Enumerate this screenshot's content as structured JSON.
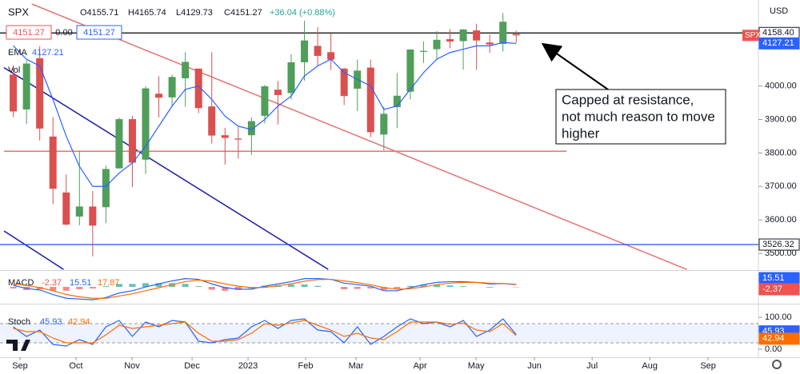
{
  "header": {
    "symbol": "SPX",
    "open": "O4155.71",
    "high": "H4165.74",
    "low": "L4129.73",
    "close": "C4151.27",
    "change": "+36.04 (+0.88%)",
    "bid": "4151.27",
    "spread": "0.00",
    "ask": "4151.27",
    "ema_label": "EMA",
    "ema_value": "4127.21",
    "vol": "Vol"
  },
  "currency": "USD",
  "annotation": [
    "Capped at resistance,",
    "not much reason to move",
    "higher"
  ],
  "chart_data": [
    {
      "type": "candlestick",
      "x": [
        0,
        1,
        2,
        3,
        4,
        5,
        6,
        7,
        8,
        9,
        10,
        11,
        12,
        13,
        14,
        15,
        16,
        17,
        18,
        19,
        20,
        21,
        22,
        23,
        24,
        25,
        26,
        27,
        28,
        29,
        30,
        31,
        32,
        33,
        34,
        35,
        36,
        37,
        38
      ],
      "open": [
        4034,
        3930,
        4083,
        3849,
        3682,
        3610,
        3640,
        3638,
        3754,
        3901,
        3780,
        3977,
        3966,
        4023,
        4052,
        3939,
        3853,
        3843,
        3853,
        3911,
        3989,
        3979,
        4071,
        4120,
        4101,
        4052,
        3992,
        4055,
        3855,
        3937,
        3983,
        4102,
        4110,
        4140,
        4134,
        4166,
        4130,
        4126,
        4155.71
      ],
      "high": [
        4062,
        4077,
        4119,
        3907,
        3736,
        3806,
        3686,
        3762,
        3905,
        3911,
        3999,
        4029,
        4034,
        4101,
        4052,
        4101,
        3875,
        3878,
        3906,
        4003,
        4015,
        4095,
        4195,
        4176,
        4156,
        4054,
        4079,
        4079,
        3938,
        4039,
        4110,
        4133,
        4164,
        4170,
        4170,
        4186,
        4154,
        4218,
        4165.74
      ],
      "low": [
        3907,
        3886,
        3837,
        3647,
        3584,
        3584,
        3491,
        3590,
        3753,
        3698,
        3737,
        3906,
        3938,
        3938,
        3919,
        3828,
        3765,
        3783,
        3794,
        3888,
        3885,
        3960,
        4016,
        4061,
        4048,
        3943,
        3925,
        3847,
        3808,
        3874,
        3960,
        4069,
        4079,
        4113,
        4049,
        4048,
        4099,
        4103,
        4129.73
      ],
      "close": [
        3924,
        4067,
        3873,
        3693,
        3586,
        3640,
        3583,
        3752,
        3901,
        3771,
        3993,
        3965,
        4027,
        4072,
        3934,
        3852,
        3845,
        3840,
        3895,
        3999,
        3973,
        4071,
        4136,
        4090,
        4079,
        3970,
        4046,
        3862,
        3917,
        3971,
        4109,
        4105,
        4138,
        4133,
        4169,
        4136,
        4124,
        4192,
        4151.27
      ],
      "up_color": "#4f9e5a",
      "down_color": "#d9504f",
      "ema": {
        "color": "#2962ff",
        "last_label": "4127.21",
        "values": [
          4120,
          4080,
          4060,
          3960,
          3850,
          3760,
          3700,
          3700,
          3740,
          3770,
          3820,
          3880,
          3940,
          3990,
          4000,
          3960,
          3910,
          3880,
          3870,
          3900,
          3940,
          3970,
          4030,
          4060,
          4080,
          4040,
          4020,
          4000,
          3930,
          3940,
          3990,
          4040,
          4080,
          4100,
          4110,
          4120,
          4120,
          4130,
          4127.21
        ]
      },
      "symbol_tag": "SPX",
      "xlim": [
        -0.7,
        56.3
      ],
      "ylim": [
        3450,
        4245
      ],
      "xticks": [
        {
          "value": 0.51,
          "label": "Sep"
        },
        {
          "value": 4.74,
          "label": "Oct"
        },
        {
          "value": 8.97,
          "label": "Nov"
        },
        {
          "value": 13.51,
          "label": "Dec"
        },
        {
          "value": 17.74,
          "label": "2023"
        },
        {
          "value": 22.09,
          "label": "Feb"
        },
        {
          "value": 25.9,
          "label": "Mar"
        },
        {
          "value": 30.74,
          "label": "Apr"
        },
        {
          "value": 34.97,
          "label": "May"
        },
        {
          "value": 39.38,
          "label": "Jun"
        },
        {
          "value": 43.74,
          "label": "Jul"
        },
        {
          "value": 48.09,
          "label": "Aug"
        },
        {
          "value": 52.5,
          "label": "Sep"
        }
      ],
      "yticks": [
        {
          "value": 4000,
          "label": "4000.00"
        },
        {
          "value": 3900,
          "label": "3900.00"
        },
        {
          "value": 3800,
          "label": "3800.00"
        },
        {
          "value": 3700,
          "label": "3700.00"
        },
        {
          "value": 3600,
          "label": "3600.00"
        },
        {
          "value": 3500,
          "label": "3500.00"
        }
      ],
      "hlines": [
        {
          "value": 4158.4,
          "label": "4158.40",
          "color": "#000000"
        },
        {
          "value": 3526.32,
          "label": "3526.32",
          "color": "#1e53e5"
        }
      ],
      "trendlines": [
        {
          "x": [
            -0.7,
            23.8
          ],
          "y": [
            4055,
            3452
          ],
          "color": "#1a1aa6"
        },
        {
          "x": [
            -0.7,
            3.8
          ],
          "y": [
            3567,
            3452
          ],
          "color": "#1a1aa6"
        },
        {
          "x": [
            1.4,
            50.9
          ],
          "y": [
            4245,
            3452
          ],
          "color": "#e57373"
        },
        {
          "x": [
            -0.7,
            41.8
          ],
          "y": [
            3805,
            3805
          ],
          "color": "#e57373"
        }
      ]
    },
    {
      "type": "macd",
      "title": "MACD",
      "legend_values": [
        "-2.37",
        "15.51",
        "17.87"
      ],
      "axis_labels": [
        "15.51",
        "-2.37"
      ],
      "ylim": [
        -100,
        90
      ],
      "series": [
        {
          "color": "#2962ff",
          "values": [
            10,
            -10,
            -20,
            -50,
            -75,
            -80,
            -85,
            -70,
            -40,
            -25,
            0,
            20,
            40,
            55,
            50,
            20,
            -5,
            -15,
            -15,
            5,
            20,
            35,
            55,
            55,
            50,
            25,
            15,
            5,
            -25,
            -25,
            -5,
            15,
            30,
            35,
            35,
            30,
            20,
            22,
            15.51
          ]
        },
        {
          "color": "#ff6d00",
          "values": [
            20,
            10,
            -5,
            -25,
            -50,
            -65,
            -75,
            -75,
            -60,
            -45,
            -25,
            -5,
            15,
            35,
            45,
            38,
            20,
            5,
            -5,
            -3,
            8,
            20,
            38,
            48,
            50,
            40,
            28,
            15,
            -5,
            -15,
            -12,
            0,
            15,
            25,
            30,
            30,
            25,
            22,
            17.87
          ]
        }
      ],
      "histogram": {
        "up_color": "#26a69a",
        "down_color": "#ef5350",
        "values": [
          -10,
          -20,
          -15,
          -25,
          -25,
          -15,
          -10,
          5,
          20,
          20,
          25,
          25,
          25,
          20,
          5,
          -18,
          -25,
          -20,
          -10,
          8,
          12,
          15,
          17,
          7,
          0,
          -15,
          -13,
          -10,
          -20,
          -10,
          7,
          15,
          15,
          10,
          5,
          0,
          -5,
          0,
          -2.37
        ]
      }
    },
    {
      "type": "stoch",
      "title": "Stoch",
      "legend_values": [
        "45.93",
        "42.94"
      ],
      "axis_labels": [
        "45.93",
        "42.94"
      ],
      "ylim": [
        0,
        100
      ],
      "yticks": [
        {
          "value": 100,
          "label": "100.00"
        },
        {
          "value": 0,
          "label": "0.00"
        }
      ],
      "band": [
        20,
        80
      ],
      "series": [
        {
          "color": "#2962ff",
          "values": [
            70,
            40,
            60,
            15,
            10,
            30,
            15,
            70,
            90,
            40,
            85,
            70,
            90,
            85,
            25,
            20,
            30,
            35,
            70,
            90,
            65,
            90,
            95,
            60,
            55,
            20,
            70,
            15,
            40,
            70,
            95,
            80,
            85,
            70,
            90,
            40,
            60,
            95,
            45.93
          ]
        },
        {
          "color": "#ff6d00",
          "values": [
            65,
            55,
            55,
            35,
            20,
            20,
            20,
            45,
            75,
            65,
            70,
            75,
            80,
            85,
            50,
            25,
            25,
            30,
            50,
            80,
            75,
            82,
            90,
            75,
            60,
            40,
            50,
            35,
            30,
            55,
            85,
            85,
            85,
            78,
            82,
            60,
            55,
            80,
            42.94
          ]
        }
      ]
    }
  ]
}
